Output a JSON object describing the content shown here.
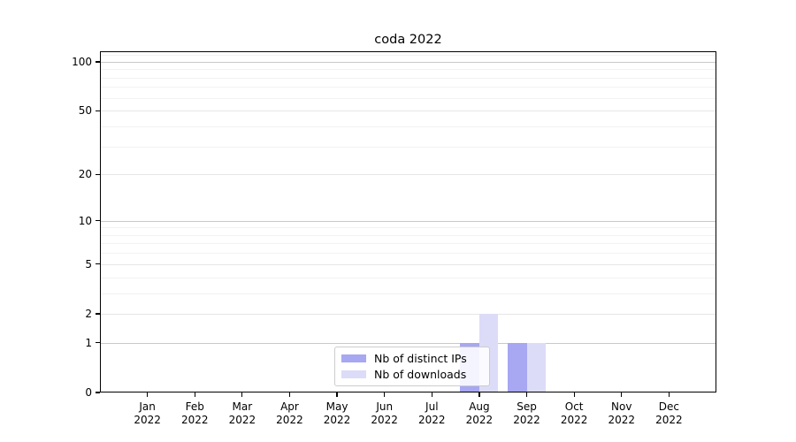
{
  "chart_data": {
    "type": "bar",
    "title": "coda 2022",
    "categories": [
      "Jan 2022",
      "Feb 2022",
      "Mar 2022",
      "Apr 2022",
      "May 2022",
      "Jun 2022",
      "Jul 2022",
      "Aug 2022",
      "Sep 2022",
      "Oct 2022",
      "Nov 2022",
      "Dec 2022"
    ],
    "series": [
      {
        "name": "Nb of distinct IPs",
        "color": "#a7a7f2",
        "values": [
          0,
          0,
          0,
          0,
          0,
          0,
          0,
          1,
          1,
          0,
          0,
          0
        ]
      },
      {
        "name": "Nb of downloads",
        "color": "#dcdcf8",
        "values": [
          0,
          0,
          0,
          0,
          0,
          0,
          0,
          2,
          1,
          0,
          0,
          0
        ]
      }
    ],
    "xlabel": "",
    "ylabel": "",
    "yscale": "symlog (position ~ ln(1+v))",
    "y_ticks": [
      0,
      1,
      2,
      5,
      10,
      20,
      50,
      100
    ],
    "ylim": [
      0,
      116
    ],
    "grid": {
      "major_at": [
        1,
        10,
        100
      ],
      "mid_at": [
        2,
        5,
        20,
        50
      ],
      "minor_at": [
        3,
        4,
        6,
        7,
        8,
        9,
        30,
        40,
        60,
        70,
        80,
        90,
        110
      ]
    },
    "legend_position": "lower center inside plot",
    "bar_width_fraction": 0.4,
    "colors": {
      "background": "#ffffff",
      "spine": "#000000",
      "grid_major": "#c9c9c9",
      "grid_mid": "#e6e6e6",
      "grid_minor": "#f2f2f2",
      "tick_label": "#000000"
    }
  }
}
